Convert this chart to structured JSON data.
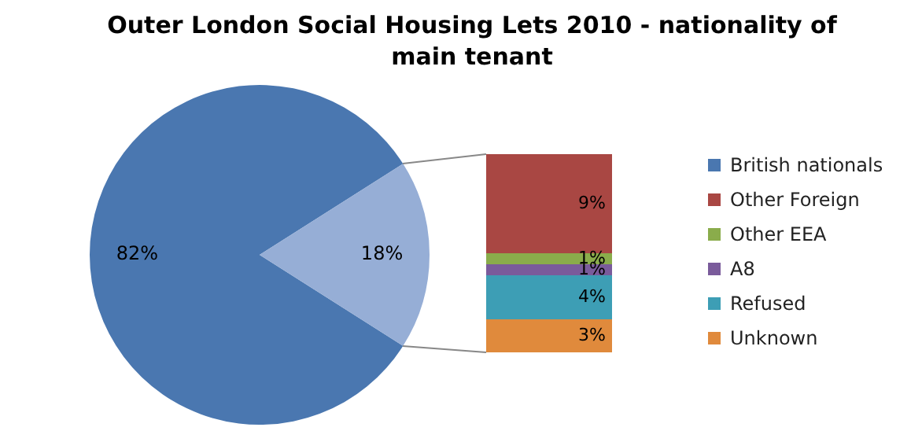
{
  "chart_data": [
    {
      "type": "pie",
      "title": "Outer London Social Housing Lets 2010 - nationality of main tenant",
      "categories": [
        "British nationals",
        null
      ],
      "values": [
        82,
        18
      ],
      "colors": [
        "#4a77b0",
        "#96aed6"
      ],
      "value_labels": [
        "82%",
        "18%"
      ],
      "legend": "right"
    },
    {
      "type": "bar",
      "stacked": true,
      "categories": [
        null
      ],
      "series": [
        {
          "name": "Unknown",
          "color": "#e08a3c",
          "values": [
            3
          ],
          "value_labels": [
            "3%"
          ]
        },
        {
          "name": "Refused",
          "color": "#3d9eb5",
          "values": [
            4
          ],
          "value_labels": [
            "4%"
          ]
        },
        {
          "name": "A8",
          "color": "#7a5b9b",
          "values": [
            1
          ],
          "value_labels": [
            "1%"
          ]
        },
        {
          "name": "Other EEA",
          "color": "#8aac4b",
          "values": [
            1
          ],
          "value_labels": [
            "1%"
          ]
        },
        {
          "name": "Other Foreign",
          "color": "#a94743",
          "values": [
            9
          ],
          "value_labels": [
            "9%"
          ]
        }
      ],
      "legend": "right"
    }
  ]
}
